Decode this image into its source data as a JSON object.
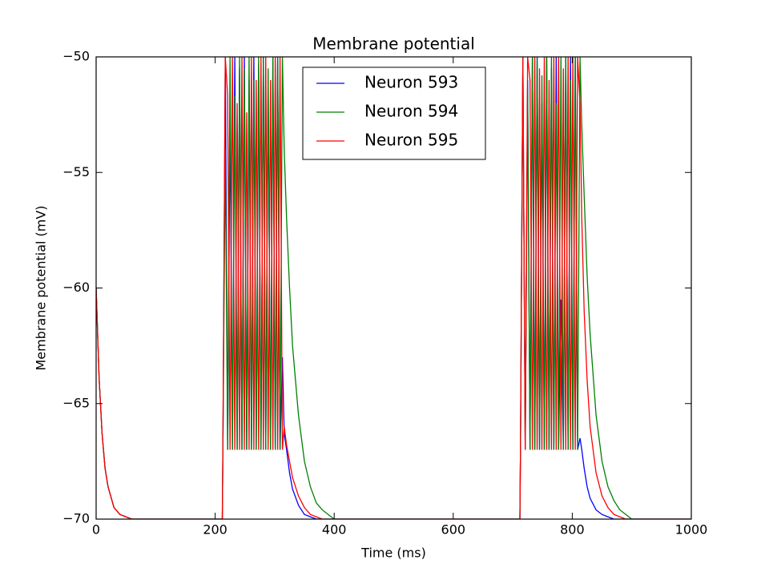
{
  "chart_data": {
    "type": "line",
    "title": "Membrane potential",
    "x_label": "Time (ms)",
    "y_label": "Membrane potential (mV)",
    "x": [
      0,
      5,
      10,
      15,
      20,
      30,
      40,
      50,
      60,
      80,
      100,
      150,
      200,
      212,
      213,
      217,
      221,
      225,
      229,
      233,
      237,
      241,
      245,
      249,
      253,
      257,
      261,
      265,
      269,
      273,
      277,
      281,
      285,
      289,
      293,
      297,
      301,
      305,
      309,
      313,
      316,
      320,
      325,
      330,
      340,
      350,
      360,
      370,
      380,
      390,
      400,
      450,
      500,
      600,
      700,
      712,
      713,
      717,
      721,
      725,
      729,
      733,
      737,
      741,
      745,
      749,
      753,
      757,
      761,
      765,
      769,
      773,
      777,
      781,
      785,
      789,
      793,
      797,
      801,
      805,
      809,
      813,
      816,
      820,
      825,
      830,
      840,
      850,
      860,
      870,
      880,
      890,
      900,
      950,
      1000
    ],
    "series": [
      {
        "name": "Neuron 593",
        "color": "#0000ff",
        "values": [
          -60,
          -63.9,
          -66.3,
          -67.8,
          -68.6,
          -69.5,
          -69.8,
          -69.9,
          -70,
          -70,
          -70,
          -70,
          -70,
          -70,
          -67,
          -50,
          -67,
          -52.6,
          -67,
          -50,
          -67,
          -50.5,
          -67,
          -50,
          -67,
          -51,
          -67,
          -50,
          -67,
          -50.3,
          -67,
          -50,
          -67,
          -51,
          -67,
          -50,
          -67,
          -50,
          -67,
          -63,
          -66.3,
          -67,
          -68,
          -68.7,
          -69.4,
          -69.8,
          -69.9,
          -70,
          -70,
          -70,
          -70,
          -70,
          -70,
          -70,
          -70,
          -70,
          -67,
          -50,
          -67,
          -51,
          -67,
          -50,
          -67,
          -50,
          -67,
          -52,
          -67,
          -50,
          -67,
          -50.5,
          -67,
          -50,
          -67,
          -60.5,
          -67,
          -50,
          -67,
          -50,
          -67,
          -50,
          -67,
          -66.5,
          -67,
          -67.8,
          -68.6,
          -69.1,
          -69.6,
          -69.8,
          -69.9,
          -70,
          -70,
          -70,
          -70,
          -70,
          -70
        ]
      },
      {
        "name": "Neuron 594",
        "color": "#008000",
        "values": [
          -60,
          -63.9,
          -66.3,
          -67.8,
          -68.6,
          -69.5,
          -69.8,
          -69.9,
          -70,
          -70,
          -70,
          -70,
          -70,
          -70,
          -67,
          -54,
          -67,
          -50,
          -67,
          -51.7,
          -67,
          -50,
          -67,
          -50.5,
          -67,
          -50,
          -67,
          -51,
          -67,
          -50,
          -67,
          -50,
          -67,
          -50.5,
          -67,
          -50,
          -67,
          -50,
          -67,
          -50,
          -54,
          -57,
          -60,
          -62.5,
          -65.5,
          -67.5,
          -68.6,
          -69.3,
          -69.6,
          -69.8,
          -70,
          -70,
          -70,
          -70,
          -70,
          -70,
          -67,
          -50,
          -67,
          -51.5,
          -67,
          -50,
          -67,
          -50,
          -67,
          -50.8,
          -67,
          -50,
          -67,
          -50,
          -67,
          -52,
          -67,
          -50,
          -67,
          -50,
          -67,
          -51,
          -67,
          -50,
          -67,
          -50,
          -53,
          -56,
          -59.5,
          -62,
          -65.5,
          -67.5,
          -68.6,
          -69.2,
          -69.6,
          -69.8,
          -70,
          -70,
          -70
        ]
      },
      {
        "name": "Neuron 595",
        "color": "#ff0000",
        "values": [
          -60,
          -63.9,
          -66.3,
          -67.8,
          -68.6,
          -69.5,
          -69.8,
          -69.9,
          -70,
          -70,
          -70,
          -70,
          -70,
          -70,
          -67,
          -50,
          -51.7,
          -67,
          -50,
          -67,
          -52,
          -67,
          -50,
          -67,
          -52.4,
          -67,
          -50,
          -67,
          -51,
          -67,
          -50,
          -67,
          -50,
          -67,
          -51,
          -67,
          -50,
          -67,
          -50,
          -67,
          -66,
          -66.8,
          -67.5,
          -68.2,
          -69,
          -69.5,
          -69.8,
          -69.9,
          -70,
          -70,
          -70,
          -70,
          -70,
          -70,
          -70,
          -70,
          -67,
          -50,
          -67,
          -50,
          -51,
          -67,
          -50,
          -67,
          -50.5,
          -67,
          -50,
          -67,
          -51,
          -67,
          -50,
          -67,
          -50,
          -67,
          -50.5,
          -67,
          -50,
          -67,
          -50,
          -67,
          -50,
          -52,
          -57,
          -61,
          -64,
          -66,
          -68,
          -69,
          -69.5,
          -69.8,
          -69.9,
          -70,
          -70,
          -70,
          -70
        ]
      }
    ],
    "xlim": [
      0,
      1000
    ],
    "xticks": [
      0,
      200,
      400,
      600,
      800,
      1000
    ],
    "ylim": [
      -70,
      -50
    ],
    "yticks": [
      {
        "value": -70,
        "label": "−70"
      },
      {
        "value": -65,
        "label": "−65"
      },
      {
        "value": -60,
        "label": "−60"
      },
      {
        "value": -55,
        "label": "−55"
      },
      {
        "value": -50,
        "label": "−50"
      }
    ],
    "legend": "upper center"
  }
}
